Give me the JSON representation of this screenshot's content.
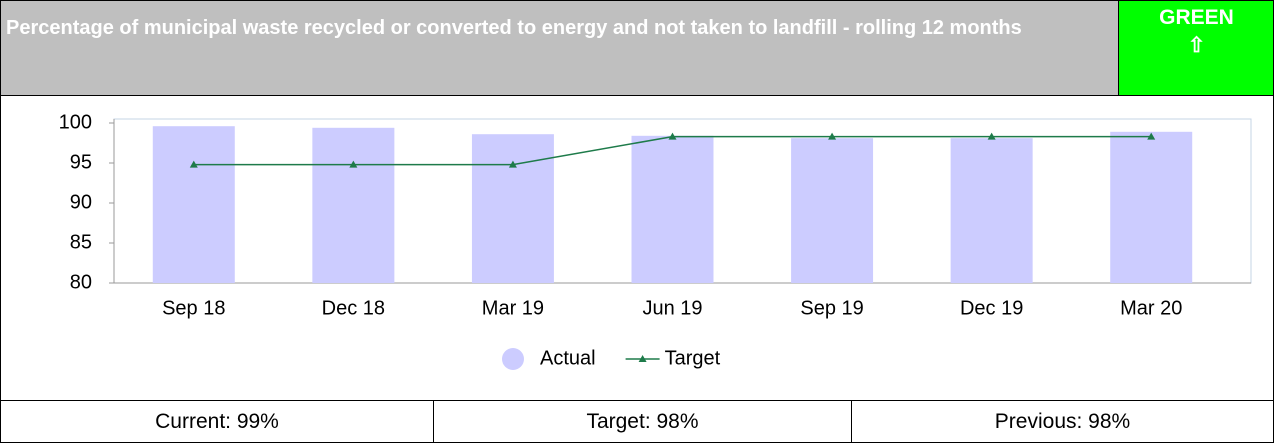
{
  "header": {
    "title": "Percentage of municipal waste recycled or converted to energy and not taken to landfill - rolling 12 months",
    "status": "GREEN",
    "arrow": "⇧"
  },
  "chart_data": {
    "type": "bar",
    "categories": [
      "Sep 18",
      "Dec 18",
      "Mar 19",
      "Jun 19",
      "Sep 19",
      "Dec 19",
      "Mar 20"
    ],
    "series": [
      {
        "name": "Actual",
        "type": "bar",
        "color": "#ccccff",
        "values": [
          99.6,
          99.4,
          98.6,
          98.4,
          98.1,
          98.1,
          98.9
        ]
      },
      {
        "name": "Target",
        "type": "line",
        "color": "#1e7b4a",
        "values": [
          94.8,
          94.8,
          94.8,
          98.3,
          98.3,
          98.3,
          98.3
        ]
      }
    ],
    "ylim": [
      80,
      100
    ],
    "yticks": [
      80,
      85,
      90,
      95,
      100
    ],
    "grid": false,
    "legend": "bottom"
  },
  "footer": [
    "Current: 99%",
    "Target: 98%",
    "Previous: 98%"
  ]
}
